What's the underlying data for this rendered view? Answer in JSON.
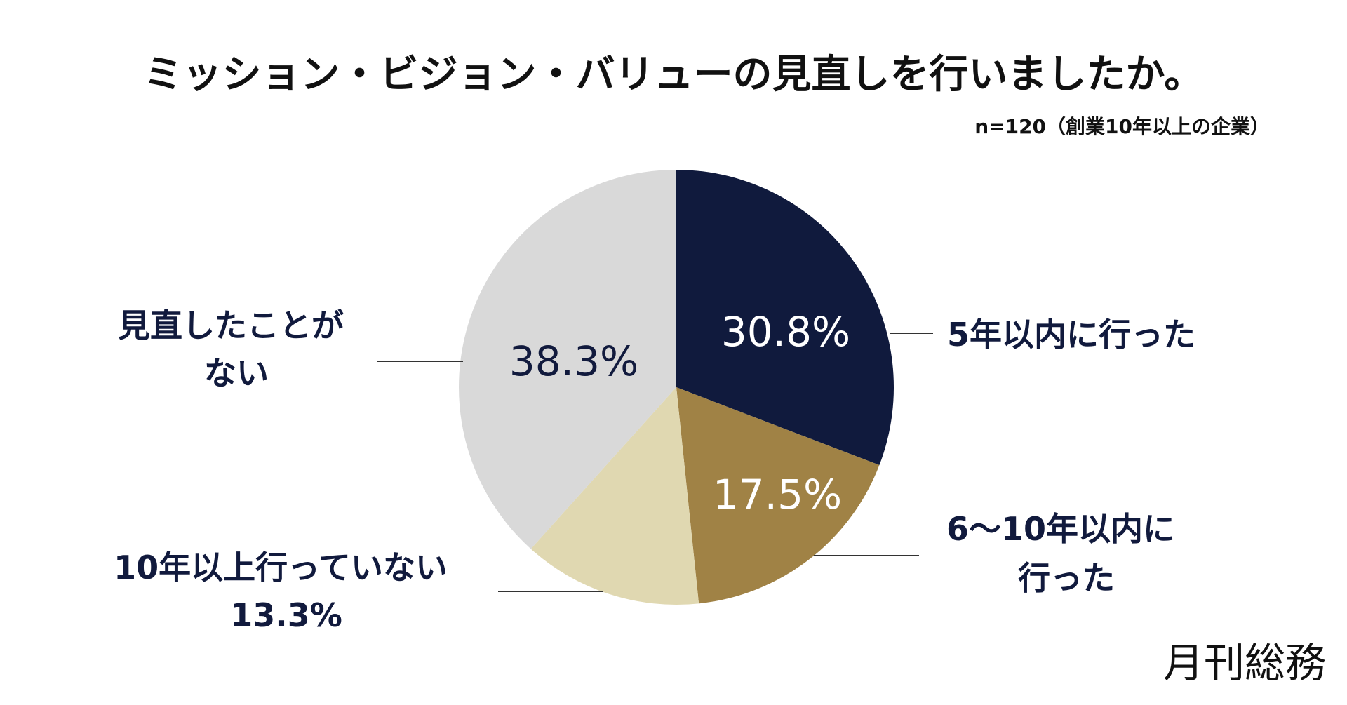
{
  "header": {
    "title": "ミッション・ビジョン・バリューの見直しを行いましたか。",
    "subtitle": "n=120（創業10年以上の企業）"
  },
  "brand": {
    "logo_text": "月刊総務"
  },
  "chart_data": {
    "type": "pie",
    "start_angle": "12 o'clock",
    "direction": "clockwise",
    "slices": [
      {
        "key": "within-5",
        "label_lines": [
          "5年以内に行った"
        ],
        "value": 30.8,
        "value_label": "30.8%",
        "color": "#101a3d",
        "value_text_color": "#ffffff",
        "value_inside": true
      },
      {
        "key": "6-10",
        "label_lines": [
          "6〜10年以内に",
          "行った"
        ],
        "value": 17.5,
        "value_label": "17.5%",
        "color": "#a08245",
        "value_text_color": "#ffffff",
        "value_inside": true
      },
      {
        "key": "over-10",
        "label_lines": [
          "10年以上行っていない"
        ],
        "value": 13.3,
        "value_label": "13.3%",
        "color": "#e0d8b1",
        "value_text_color": "#111a3d",
        "value_inside": false
      },
      {
        "key": "never",
        "label_lines": [
          "見直したことが",
          "ない"
        ],
        "value": 38.3,
        "value_label": "38.3%",
        "color": "#d9d9d9",
        "value_text_color": "#111a3d",
        "value_inside": true
      }
    ],
    "label_color": "#111a3d",
    "leader_color": "#333333"
  }
}
